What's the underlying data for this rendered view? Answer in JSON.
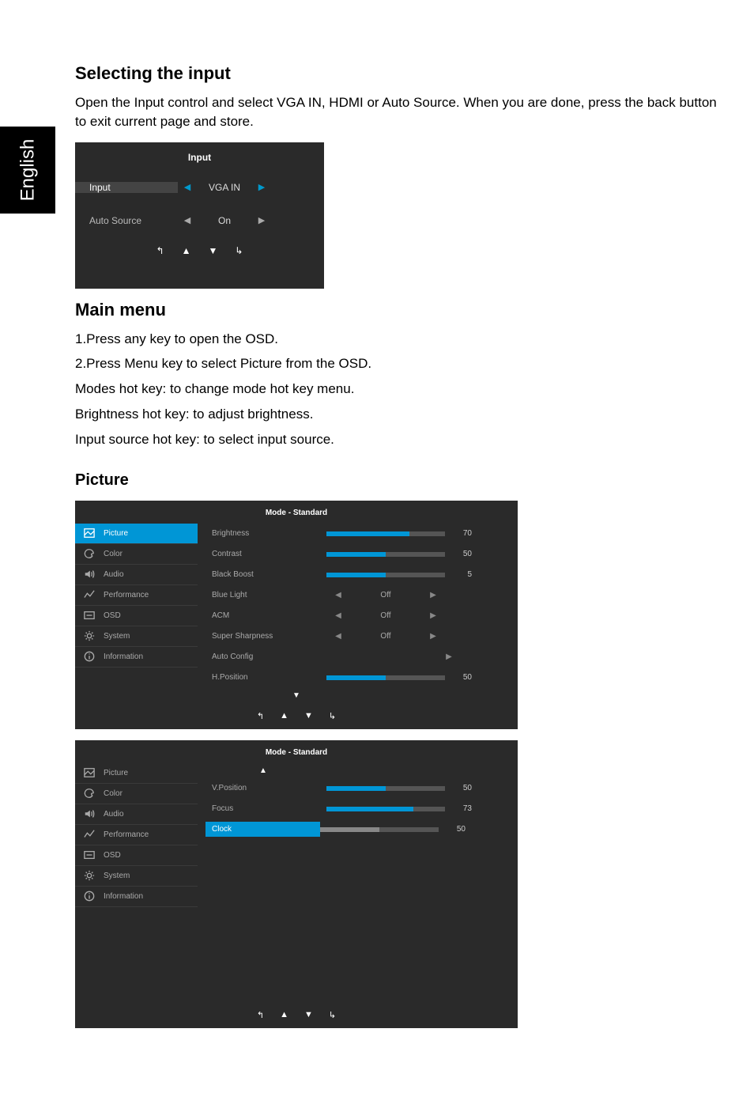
{
  "language_tab": "English",
  "headings": {
    "selecting_input": "Selecting the input",
    "main_menu": "Main menu",
    "picture": "Picture"
  },
  "text": {
    "selecting_input_body": "Open the Input control and select VGA IN, HDMI or Auto Source. When you are done, press the back button to exit current page and store.",
    "main_menu_1": "1.Press any key to open the OSD.",
    "main_menu_2": "2.Press Menu key to select Picture from the OSD.",
    "main_menu_3": "Modes hot key: to change mode hot key menu.",
    "main_menu_4": "Brightness hot key: to adjust brightness.",
    "main_menu_5": "Input source hot key: to select  input source."
  },
  "input_panel": {
    "title": "Input",
    "rows": [
      {
        "label": "Input",
        "value": "VGA IN",
        "active": true
      },
      {
        "label": "Auto Source",
        "value": "On",
        "active": false
      }
    ]
  },
  "mode_panel_1": {
    "header": "Mode - Standard",
    "sidebar": [
      {
        "label": "Picture",
        "active": true,
        "icon": "picture"
      },
      {
        "label": "Color",
        "active": false,
        "icon": "color"
      },
      {
        "label": "Audio",
        "active": false,
        "icon": "audio"
      },
      {
        "label": "Performance",
        "active": false,
        "icon": "performance"
      },
      {
        "label": "OSD",
        "active": false,
        "icon": "osd"
      },
      {
        "label": "System",
        "active": false,
        "icon": "system"
      },
      {
        "label": "Information",
        "active": false,
        "icon": "info"
      }
    ],
    "settings": [
      {
        "label": "Brightness",
        "type": "slider",
        "value": 70,
        "max": 100,
        "fill": "blue"
      },
      {
        "label": "Contrast",
        "type": "slider",
        "value": 50,
        "max": 100,
        "fill": "blue"
      },
      {
        "label": "Black Boost",
        "type": "slider",
        "value": 5,
        "max": 10,
        "fill": "blue"
      },
      {
        "label": "Blue Light",
        "type": "option",
        "value": "Off"
      },
      {
        "label": "ACM",
        "type": "option",
        "value": "Off"
      },
      {
        "label": "Super Sharpness",
        "type": "option",
        "value": "Off"
      },
      {
        "label": "Auto Config",
        "type": "action"
      },
      {
        "label": "H.Position",
        "type": "slider",
        "value": 50,
        "max": 100,
        "fill": "blue"
      }
    ]
  },
  "mode_panel_2": {
    "header": "Mode - Standard",
    "sidebar": [
      {
        "label": "Picture",
        "active": false,
        "icon": "picture"
      },
      {
        "label": "Color",
        "active": false,
        "icon": "color"
      },
      {
        "label": "Audio",
        "active": false,
        "icon": "audio"
      },
      {
        "label": "Performance",
        "active": false,
        "icon": "performance"
      },
      {
        "label": "OSD",
        "active": false,
        "icon": "osd"
      },
      {
        "label": "System",
        "active": false,
        "icon": "system"
      },
      {
        "label": "Information",
        "active": false,
        "icon": "info"
      }
    ],
    "settings": [
      {
        "label": "V.Position",
        "type": "slider",
        "value": 50,
        "max": 100,
        "fill": "blue"
      },
      {
        "label": "Focus",
        "type": "slider",
        "value": 73,
        "max": 100,
        "fill": "blue"
      },
      {
        "label": "Clock",
        "type": "slider",
        "value": 50,
        "max": 100,
        "fill": "grey",
        "selected": true
      }
    ]
  },
  "icons": {
    "back": "↰",
    "up": "▲",
    "down": "▼",
    "enter": "↳",
    "left": "◀",
    "right": "▶"
  },
  "colors": {
    "panel_bg": "#2a2a2a",
    "accent": "#0096d6",
    "text_dim": "#aaaaaa",
    "text_light": "#ffffff",
    "slider_track": "#555555"
  }
}
